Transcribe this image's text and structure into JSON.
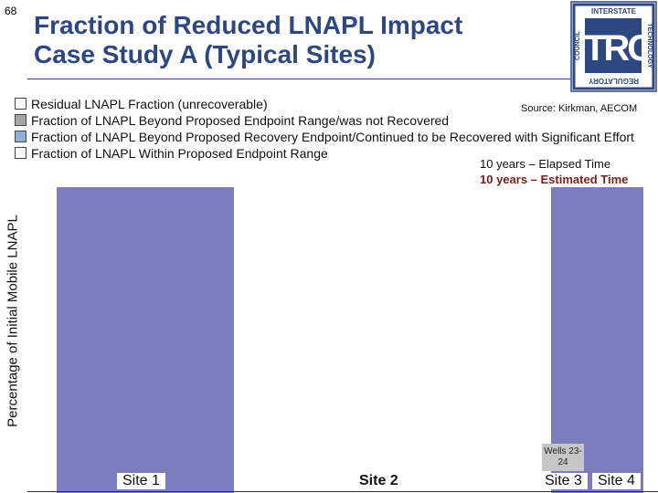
{
  "slide": {
    "number": "68",
    "title_line1": "Fraction of Reduced LNAPL Impact",
    "title_line2": "Case Study A (Typical Sites)"
  },
  "logo": {
    "top": "INTERSTATE",
    "right": "TECHNOLOGY",
    "bottom": "REGULATORY",
    "left": "COUNCIL",
    "main": "ITRC"
  },
  "legend": [
    {
      "label": "Residual LNAPL Fraction (unrecoverable)",
      "color": "#ffffff"
    },
    {
      "label": "Fraction of LNAPL Beyond Proposed Endpoint Range/was not Recovered",
      "color": "#a6a6a6"
    },
    {
      "label": "Fraction of LNAPL Beyond Proposed Recovery Endpoint/Continued to be Recovered with Significant Effort",
      "color": "#8fb1d9"
    },
    {
      "label": "Fraction of LNAPL Within Proposed Endpoint Range",
      "color": "#ffffff"
    }
  ],
  "source": "Source: Kirkman, AECOM",
  "notes": {
    "elapsed": "10 years – Elapsed Time",
    "estimated": "10 years – Estimated Time"
  },
  "wells_label": "Wells 23-24",
  "chart_data": {
    "type": "bar",
    "title": "Fraction of Reduced LNAPL Impact",
    "xlabel": "",
    "ylabel": "Percentage of Initial Mobile LNAPL",
    "ylim": [
      0,
      100
    ],
    "grid": false,
    "categories": [
      "Site 1",
      "Site 2",
      "Site 3",
      "Site 4"
    ],
    "bold_categories": [
      "Site 2"
    ],
    "series": [
      {
        "name": "Fraction of LNAPL Within Proposed Endpoint Range",
        "color": "#7b7dbd",
        "values": [
          100,
          null,
          null,
          100
        ]
      }
    ]
  }
}
